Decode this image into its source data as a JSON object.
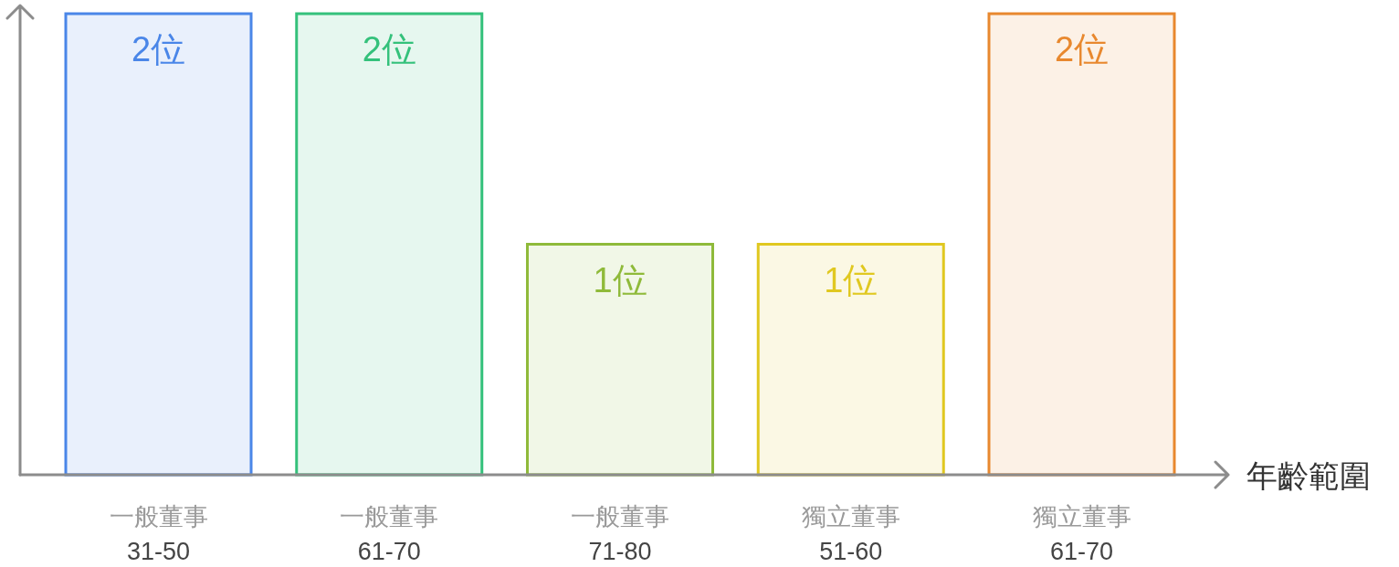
{
  "chart_data": {
    "type": "bar",
    "ylim": [
      0,
      2
    ],
    "xlabel": "年齡範圍",
    "categories": [
      "一般董事\n31-50",
      "一般董事\n61-70",
      "一般董事\n71-80",
      "獨立董事\n51-60",
      "獨立董事\n61-70"
    ],
    "values": [
      2,
      2,
      1,
      1,
      2
    ],
    "value_labels": [
      "2位",
      "2位",
      "1位",
      "1位",
      "2位"
    ],
    "colors": [
      "#4a86e8",
      "#34c17b",
      "#8fba3a",
      "#e0c820",
      "#e8882e"
    ]
  }
}
